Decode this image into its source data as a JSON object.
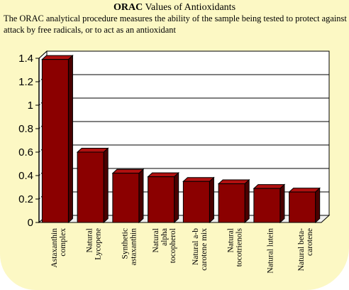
{
  "header": {
    "title_bold": "ORAC",
    "title_rest": " Values of Antioxidants",
    "description": "The ORAC analytical procedure measures the ability of the sample being tested to protect against attack by free radicals, or to act as an antioxidant"
  },
  "colors": {
    "background": "#fcf8c4",
    "bar_front": "#8b0000",
    "bar_top": "#b01010",
    "bar_side": "#4a0000",
    "plot_face": "#ffffff",
    "floor": "#f0f0f0"
  },
  "chart_data": {
    "type": "bar",
    "title": "ORAC Values of Antioxidants",
    "categories": [
      [
        "Astaxanthin",
        "complex"
      ],
      [
        "Natural",
        "Lycopene"
      ],
      [
        "Synthetic",
        "astaxanthin"
      ],
      [
        "Natural",
        "alpha",
        "tocopherol"
      ],
      [
        "Natural a-b",
        "carotene mix"
      ],
      [
        "Natural",
        "tocotrienols"
      ],
      [
        "Natural lutein"
      ],
      [
        "Natural beta-",
        "carotene"
      ]
    ],
    "values": [
      1.39,
      0.6,
      0.42,
      0.39,
      0.35,
      0.33,
      0.29,
      0.26
    ],
    "ylim": [
      0,
      1.4
    ],
    "yticks": [
      "0",
      "0.2",
      "0.4",
      "0.6",
      "0.8",
      "1",
      "1.2",
      "1.4"
    ],
    "xlabel": "",
    "ylabel": "",
    "grid": true
  }
}
